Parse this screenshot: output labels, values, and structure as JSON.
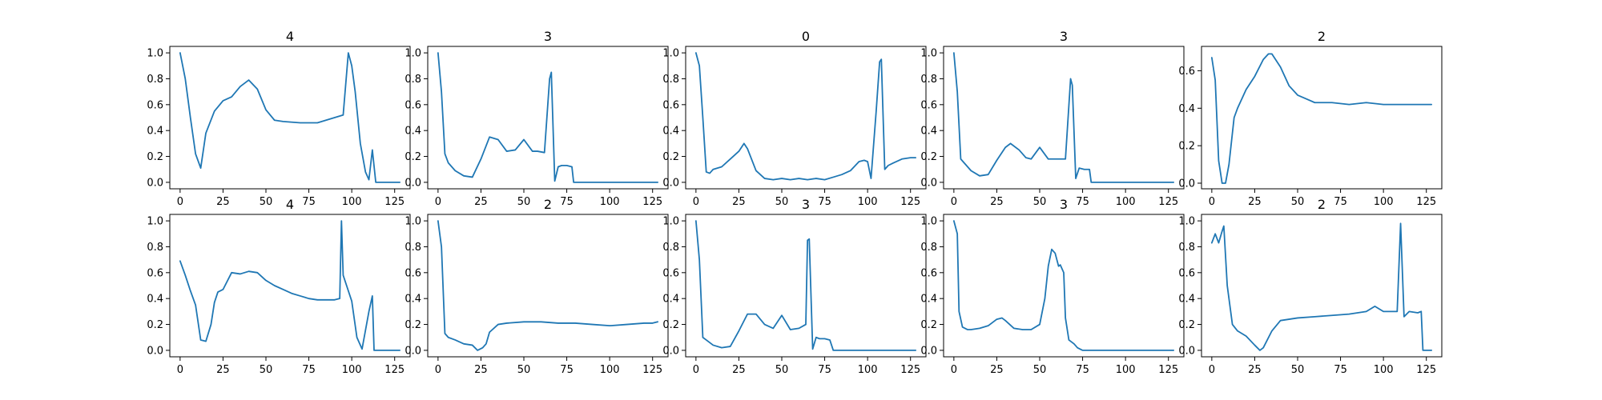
{
  "chart_data": [
    {
      "type": "line",
      "title": "4",
      "color": "#1f77b4",
      "xlim": [
        -6,
        134
      ],
      "ylim": [
        -0.05,
        1.05
      ],
      "xticks": [
        0,
        25,
        50,
        75,
        100,
        125
      ],
      "yticks": [
        0.0,
        0.2,
        0.4,
        0.6,
        0.8,
        1.0
      ],
      "x": [
        0,
        3,
        6,
        9,
        12,
        15,
        20,
        25,
        30,
        35,
        40,
        45,
        50,
        55,
        60,
        70,
        80,
        90,
        95,
        98,
        100,
        102,
        105,
        108,
        110,
        112,
        114,
        115,
        117,
        120,
        125,
        128
      ],
      "y": [
        1.0,
        0.8,
        0.5,
        0.22,
        0.11,
        0.38,
        0.55,
        0.63,
        0.66,
        0.74,
        0.79,
        0.72,
        0.56,
        0.48,
        0.47,
        0.46,
        0.46,
        0.5,
        0.52,
        1.0,
        0.9,
        0.7,
        0.3,
        0.08,
        0.02,
        0.25,
        0.0,
        0.0,
        0.0,
        0.0,
        0.0,
        0.0
      ]
    },
    {
      "type": "line",
      "title": "3",
      "color": "#1f77b4",
      "xlim": [
        -6,
        134
      ],
      "ylim": [
        -0.05,
        1.05
      ],
      "xticks": [
        0,
        25,
        50,
        75,
        100,
        125
      ],
      "yticks": [
        0.0,
        0.2,
        0.4,
        0.6,
        0.8,
        1.0
      ],
      "x": [
        0,
        2,
        4,
        6,
        10,
        15,
        20,
        25,
        30,
        35,
        40,
        45,
        50,
        55,
        58,
        62,
        65,
        66,
        68,
        70,
        72,
        75,
        78,
        79,
        80,
        90,
        100,
        110,
        120,
        128
      ],
      "y": [
        1.0,
        0.7,
        0.22,
        0.15,
        0.09,
        0.05,
        0.04,
        0.18,
        0.35,
        0.33,
        0.24,
        0.25,
        0.33,
        0.24,
        0.24,
        0.23,
        0.8,
        0.85,
        0.01,
        0.12,
        0.13,
        0.13,
        0.12,
        0.0,
        0.0,
        0.0,
        0.0,
        0.0,
        0.0,
        0.0
      ]
    },
    {
      "type": "line",
      "title": "0",
      "color": "#1f77b4",
      "xlim": [
        -6,
        134
      ],
      "ylim": [
        -0.05,
        1.05
      ],
      "xticks": [
        0,
        25,
        50,
        75,
        100,
        125
      ],
      "yticks": [
        0.0,
        0.2,
        0.4,
        0.6,
        0.8,
        1.0
      ],
      "x": [
        0,
        2,
        4,
        6,
        8,
        10,
        15,
        20,
        25,
        28,
        30,
        35,
        40,
        45,
        50,
        55,
        60,
        65,
        70,
        75,
        80,
        85,
        90,
        95,
        98,
        100,
        102,
        105,
        107,
        108,
        110,
        112,
        115,
        120,
        125,
        128
      ],
      "y": [
        1.0,
        0.9,
        0.5,
        0.08,
        0.07,
        0.1,
        0.12,
        0.18,
        0.24,
        0.3,
        0.26,
        0.09,
        0.03,
        0.02,
        0.03,
        0.02,
        0.03,
        0.02,
        0.03,
        0.02,
        0.04,
        0.06,
        0.09,
        0.16,
        0.17,
        0.16,
        0.03,
        0.55,
        0.93,
        0.95,
        0.1,
        0.13,
        0.15,
        0.18,
        0.19,
        0.19
      ]
    },
    {
      "type": "line",
      "title": "3",
      "color": "#1f77b4",
      "xlim": [
        -6,
        134
      ],
      "ylim": [
        -0.05,
        1.05
      ],
      "xticks": [
        0,
        25,
        50,
        75,
        100,
        125
      ],
      "yticks": [
        0.0,
        0.2,
        0.4,
        0.6,
        0.8,
        1.0
      ],
      "x": [
        0,
        2,
        4,
        6,
        10,
        15,
        20,
        25,
        30,
        33,
        38,
        42,
        45,
        50,
        55,
        60,
        65,
        68,
        69,
        71,
        73,
        76,
        79,
        80,
        81,
        90,
        100,
        110,
        120,
        128
      ],
      "y": [
        1.0,
        0.7,
        0.18,
        0.15,
        0.09,
        0.05,
        0.06,
        0.17,
        0.27,
        0.3,
        0.25,
        0.19,
        0.18,
        0.27,
        0.18,
        0.18,
        0.18,
        0.8,
        0.75,
        0.03,
        0.11,
        0.1,
        0.1,
        0.0,
        0.0,
        0.0,
        0.0,
        0.0,
        0.0,
        0.0
      ]
    },
    {
      "type": "line",
      "title": "2",
      "color": "#1f77b4",
      "xlim": [
        -6,
        134
      ],
      "ylim": [
        -0.03,
        0.73
      ],
      "xticks": [
        0,
        25,
        50,
        75,
        100,
        125
      ],
      "yticks": [
        0.0,
        0.2,
        0.4,
        0.6
      ],
      "x": [
        0,
        2,
        4,
        6,
        8,
        10,
        13,
        15,
        20,
        25,
        30,
        33,
        35,
        40,
        45,
        50,
        55,
        60,
        70,
        80,
        90,
        100,
        110,
        120,
        125,
        128
      ],
      "y": [
        0.67,
        0.55,
        0.12,
        0.0,
        0.0,
        0.1,
        0.35,
        0.4,
        0.5,
        0.57,
        0.66,
        0.69,
        0.69,
        0.62,
        0.52,
        0.47,
        0.45,
        0.43,
        0.43,
        0.42,
        0.43,
        0.42,
        0.42,
        0.42,
        0.42,
        0.42
      ]
    },
    {
      "type": "line",
      "title": "4",
      "color": "#1f77b4",
      "xlim": [
        -6,
        134
      ],
      "ylim": [
        -0.05,
        1.05
      ],
      "xticks": [
        0,
        25,
        50,
        75,
        100,
        125
      ],
      "yticks": [
        0.0,
        0.2,
        0.4,
        0.6,
        0.8,
        1.0
      ],
      "x": [
        0,
        3,
        6,
        9,
        12,
        15,
        18,
        20,
        22,
        25,
        30,
        35,
        40,
        45,
        50,
        55,
        60,
        65,
        70,
        75,
        80,
        85,
        90,
        93,
        94,
        95,
        97,
        100,
        103,
        106,
        110,
        112,
        113,
        115,
        120,
        125,
        128
      ],
      "y": [
        0.69,
        0.58,
        0.46,
        0.35,
        0.08,
        0.07,
        0.2,
        0.37,
        0.45,
        0.47,
        0.6,
        0.59,
        0.61,
        0.6,
        0.54,
        0.5,
        0.47,
        0.44,
        0.42,
        0.4,
        0.39,
        0.39,
        0.39,
        0.4,
        1.0,
        0.58,
        0.5,
        0.38,
        0.1,
        0.01,
        0.3,
        0.42,
        0.0,
        0.0,
        0.0,
        0.0,
        0.0
      ]
    },
    {
      "type": "line",
      "title": "2",
      "color": "#1f77b4",
      "xlim": [
        -6,
        134
      ],
      "ylim": [
        -0.05,
        1.05
      ],
      "xticks": [
        0,
        25,
        50,
        75,
        100,
        125
      ],
      "yticks": [
        0.0,
        0.2,
        0.4,
        0.6,
        0.8,
        1.0
      ],
      "x": [
        0,
        2,
        4,
        6,
        10,
        15,
        20,
        23,
        26,
        28,
        30,
        35,
        40,
        50,
        60,
        70,
        80,
        90,
        100,
        110,
        120,
        125,
        128
      ],
      "y": [
        1.0,
        0.8,
        0.13,
        0.1,
        0.08,
        0.05,
        0.04,
        0.0,
        0.02,
        0.05,
        0.14,
        0.2,
        0.21,
        0.22,
        0.22,
        0.21,
        0.21,
        0.2,
        0.19,
        0.2,
        0.21,
        0.21,
        0.22
      ]
    },
    {
      "type": "line",
      "title": "3",
      "color": "#1f77b4",
      "xlim": [
        -6,
        134
      ],
      "ylim": [
        -0.05,
        1.05
      ],
      "xticks": [
        0,
        25,
        50,
        75,
        100,
        125
      ],
      "yticks": [
        0.0,
        0.2,
        0.4,
        0.6,
        0.8,
        1.0
      ],
      "x": [
        0,
        2,
        4,
        6,
        10,
        15,
        20,
        25,
        30,
        35,
        40,
        45,
        50,
        55,
        60,
        64,
        65,
        66,
        68,
        70,
        72,
        75,
        78,
        80,
        90,
        100,
        110,
        120,
        128
      ],
      "y": [
        1.0,
        0.7,
        0.1,
        0.08,
        0.04,
        0.02,
        0.03,
        0.15,
        0.28,
        0.28,
        0.2,
        0.17,
        0.27,
        0.16,
        0.17,
        0.2,
        0.85,
        0.86,
        0.01,
        0.1,
        0.09,
        0.09,
        0.08,
        0.0,
        0.0,
        0.0,
        0.0,
        0.0,
        0.0
      ]
    },
    {
      "type": "line",
      "title": "3",
      "color": "#1f77b4",
      "xlim": [
        -6,
        134
      ],
      "ylim": [
        -0.05,
        1.05
      ],
      "xticks": [
        0,
        25,
        50,
        75,
        100,
        125
      ],
      "yticks": [
        0.0,
        0.2,
        0.4,
        0.6,
        0.8,
        1.0
      ],
      "x": [
        0,
        2,
        3,
        5,
        8,
        10,
        15,
        20,
        25,
        28,
        30,
        35,
        40,
        45,
        50,
        53,
        55,
        57,
        59,
        61,
        62,
        64,
        65,
        67,
        70,
        72,
        75,
        80,
        90,
        100,
        110,
        120,
        128
      ],
      "y": [
        1.0,
        0.9,
        0.3,
        0.18,
        0.16,
        0.16,
        0.17,
        0.19,
        0.24,
        0.25,
        0.23,
        0.17,
        0.16,
        0.16,
        0.2,
        0.4,
        0.65,
        0.78,
        0.75,
        0.65,
        0.66,
        0.6,
        0.25,
        0.08,
        0.05,
        0.02,
        0.0,
        0.0,
        0.0,
        0.0,
        0.0,
        0.0,
        0.0
      ]
    },
    {
      "type": "line",
      "title": "2",
      "color": "#1f77b4",
      "xlim": [
        -6,
        134
      ],
      "ylim": [
        -0.05,
        1.05
      ],
      "xticks": [
        0,
        25,
        50,
        75,
        100,
        125
      ],
      "yticks": [
        0.0,
        0.2,
        0.4,
        0.6,
        0.8,
        1.0
      ],
      "x": [
        0,
        2,
        4,
        6,
        7,
        9,
        12,
        15,
        20,
        25,
        28,
        30,
        35,
        40,
        50,
        60,
        70,
        80,
        90,
        95,
        100,
        105,
        108,
        110,
        112,
        115,
        120,
        122,
        123,
        125,
        128
      ],
      "y": [
        0.83,
        0.9,
        0.83,
        0.92,
        0.96,
        0.5,
        0.2,
        0.15,
        0.11,
        0.04,
        0.0,
        0.02,
        0.15,
        0.23,
        0.25,
        0.26,
        0.27,
        0.28,
        0.3,
        0.34,
        0.3,
        0.3,
        0.3,
        0.98,
        0.26,
        0.3,
        0.29,
        0.3,
        0.0,
        0.0,
        0.0
      ]
    }
  ]
}
